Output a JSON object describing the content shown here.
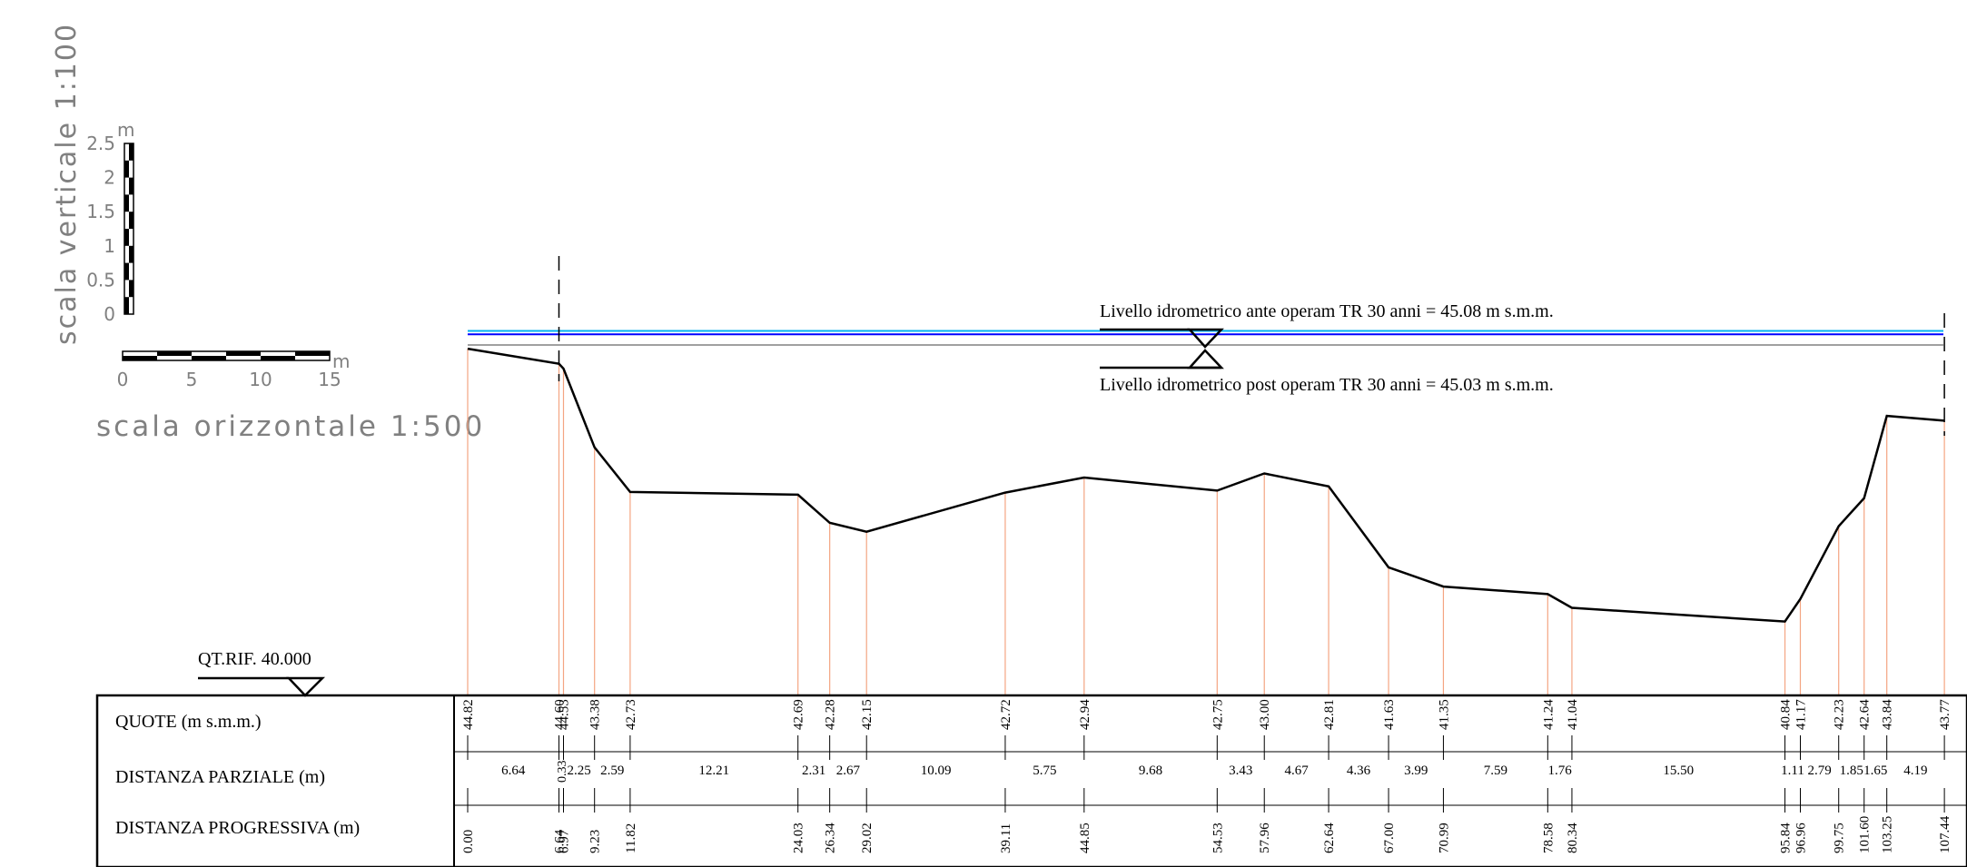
{
  "scales": {
    "vertical_label": "scala verticale 1:100",
    "vertical_ticks": [
      "0",
      "0.5",
      "1",
      "1.5",
      "2",
      "2.5"
    ],
    "vertical_unit": "m",
    "horizontal_label": "scala orizzontale 1:500",
    "horizontal_ticks": [
      "0",
      "5",
      "10",
      "15"
    ],
    "horizontal_unit": "m"
  },
  "reference": {
    "label": "QT.RIF. 40.000",
    "elevation": 40.0
  },
  "water_levels": {
    "ante_label": "Livello idrometrico ante operam TR 30 anni = 45.08 m s.m.m.",
    "ante_value": 45.08,
    "ante_color": "#00b0f0",
    "post_label": "Livello idrometrico post operam TR 30 anni = 45.03 m s.m.m.",
    "post_value": 45.03,
    "post_color": "#0000ff"
  },
  "table": {
    "row_quote": "QUOTE (m s.m.m.)",
    "row_parziale": "DISTANZA PARZIALE (m)",
    "row_progressiva": "DISTANZA PROGRESSIVA (m)"
  },
  "profile": {
    "progressive": [
      0.0,
      6.64,
      6.97,
      9.23,
      11.82,
      24.03,
      26.34,
      29.02,
      39.11,
      44.85,
      54.53,
      57.96,
      62.64,
      67.0,
      70.99,
      78.58,
      80.34,
      95.84,
      96.96,
      99.75,
      101.6,
      103.25,
      107.44
    ],
    "progressive_labels": [
      "0.00",
      "6.64",
      "6.97",
      "9.23",
      "11.82",
      "24.03",
      "26.34",
      "29.02",
      "39.11",
      "44.85",
      "54.53",
      "57.96",
      "62.64",
      "67.00",
      "70.99",
      "78.58",
      "80.34",
      "95.84",
      "96.96",
      "99.75",
      "101.60",
      "103.25",
      "107.44"
    ],
    "elevations": [
      44.82,
      44.6,
      44.53,
      43.38,
      42.73,
      42.69,
      42.28,
      42.15,
      42.72,
      42.94,
      42.75,
      43.0,
      42.81,
      41.63,
      41.35,
      41.24,
      41.04,
      40.84,
      41.17,
      42.23,
      42.64,
      43.84,
      43.77
    ],
    "elevation_labels": [
      "44.82",
      "44.60",
      "44.53",
      "43.38",
      "42.73",
      "42.69",
      "42.28",
      "42.15",
      "42.72",
      "42.94",
      "42.75",
      "43.00",
      "42.81",
      "41.63",
      "41.35",
      "41.24",
      "41.04",
      "40.84",
      "41.17",
      "42.23",
      "42.64",
      "43.84",
      "43.77"
    ],
    "partial_labels": [
      "6.64",
      "0.33",
      "2.25",
      "2.59",
      "12.21",
      "2.31",
      "2.67",
      "10.09",
      "5.75",
      "9.68",
      "3.43",
      "4.67",
      "4.36",
      "3.99",
      "7.59",
      "1.76",
      "15.50",
      "1.11",
      "2.79",
      "1.85",
      "1.65",
      "4.19"
    ]
  },
  "colors": {
    "terrain": "#000000",
    "vertical_guides": "#f4a582"
  }
}
